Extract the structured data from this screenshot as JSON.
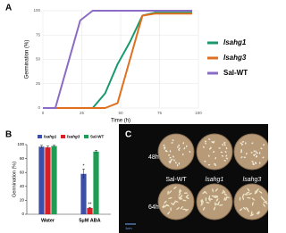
{
  "panels": {
    "a": "A",
    "b": "B",
    "c": "C"
  },
  "photo": {
    "times": [
      "48h",
      "64h"
    ],
    "genotypes": [
      "Sal-WT",
      "lsahg1",
      "lsahg3"
    ],
    "scale_bar": "1cm"
  },
  "chart_data": [
    {
      "type": "line",
      "x_label": "Time (h)",
      "y_label": "Germination (%)",
      "x": [
        0,
        8,
        16,
        24,
        32,
        40,
        48,
        56,
        64,
        72,
        80,
        88,
        96
      ],
      "series": [
        {
          "name": "lsahg1",
          "color": "#1a9a6c",
          "values": [
            0,
            0,
            0,
            0,
            0,
            15,
            45,
            68,
            95,
            98,
            98,
            98,
            98
          ]
        },
        {
          "name": "lsahg3",
          "color": "#e0701f",
          "values": [
            0,
            0,
            0,
            0,
            0,
            0,
            5,
            50,
            95,
            97,
            97,
            97,
            97
          ]
        },
        {
          "name": "Sal-WT",
          "color": "#8a6cc4",
          "values": [
            0,
            0,
            45,
            90,
            100,
            100,
            100,
            100,
            100,
            100,
            100,
            100,
            100
          ]
        }
      ],
      "xlim": [
        0,
        100
      ],
      "xticks": [
        0,
        25,
        50,
        75,
        100
      ],
      "ylim": [
        0,
        100
      ],
      "yticks": [
        0,
        25,
        50,
        75,
        100
      ],
      "grid": true,
      "legend": "right"
    },
    {
      "type": "bar",
      "y_label": "Germination (%)",
      "categories": [
        "Water",
        "5μM ABA"
      ],
      "series": [
        {
          "name": "lsahg1",
          "color": "#3b4fa8",
          "values": [
            97,
            58
          ],
          "errors": [
            2,
            7
          ],
          "marks": [
            null,
            "*"
          ]
        },
        {
          "name": "lsahg3",
          "color": "#d81f26",
          "values": [
            96,
            9
          ],
          "errors": [
            2,
            1
          ],
          "marks": [
            null,
            "**"
          ]
        },
        {
          "name": "Sal-WT",
          "color": "#1f9d55",
          "values": [
            98,
            90
          ],
          "errors": [
            1,
            2
          ],
          "marks": [
            null,
            null
          ]
        }
      ],
      "ylim": [
        0,
        100
      ],
      "yticks": [
        0,
        20,
        40,
        60,
        80,
        100
      ],
      "grid": false,
      "legend": "top"
    }
  ]
}
